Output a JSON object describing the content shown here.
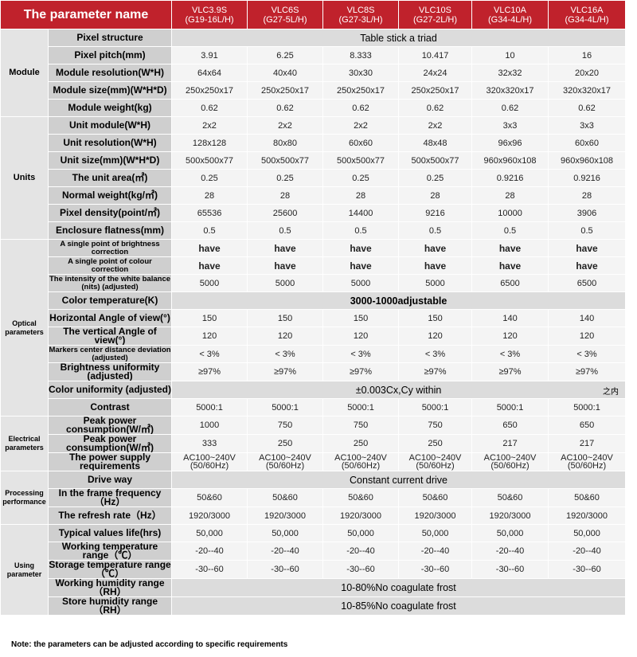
{
  "header": {
    "title": "The parameter name",
    "models": [
      {
        "name": "VLC3.9S",
        "code": "(G19-16L/H)"
      },
      {
        "name": "VLC6S",
        "code": "(G27-5L/H)"
      },
      {
        "name": "VLC8S",
        "code": "(G27-3L/H)"
      },
      {
        "name": "VLC10S",
        "code": "(G27-2L/H)"
      },
      {
        "name": "VLC10A",
        "code": "(G34-4L/H)"
      },
      {
        "name": "VLC16A",
        "code": "(G34-4L/H)"
      }
    ]
  },
  "groups": [
    {
      "name": "Module",
      "rows": [
        {
          "label": "Pixel structure",
          "span": "Table stick a triad"
        },
        {
          "label": "Pixel pitch(mm)",
          "values": [
            "3.91",
            "6.25",
            "8.333",
            "10.417",
            "10",
            "16"
          ]
        },
        {
          "label": "Module resolution(W*H)",
          "values": [
            "64x64",
            "40x40",
            "30x30",
            "24x24",
            "32x32",
            "20x20"
          ]
        },
        {
          "label": "Module size(mm)(W*H*D)",
          "values": [
            "250x250x17",
            "250x250x17",
            "250x250x17",
            "250x250x17",
            "320x320x17",
            "320x320x17"
          ]
        },
        {
          "label": "Module weight(kg)",
          "values": [
            "0.62",
            "0.62",
            "0.62",
            "0.62",
            "0.62",
            "0.62"
          ]
        }
      ]
    },
    {
      "name": "Units",
      "rows": [
        {
          "label": "Unit module(W*H)",
          "values": [
            "2x2",
            "2x2",
            "2x2",
            "2x2",
            "3x3",
            "3x3"
          ]
        },
        {
          "label": "Unit resolution(W*H)",
          "values": [
            "128x128",
            "80x80",
            "60x60",
            "48x48",
            "96x96",
            "60x60"
          ]
        },
        {
          "label": "Unit size(mm)(W*H*D)",
          "values": [
            "500x500x77",
            "500x500x77",
            "500x500x77",
            "500x500x77",
            "960x960x108",
            "960x960x108"
          ]
        },
        {
          "label": "The unit area(㎡)",
          "values": [
            "0.25",
            "0.25",
            "0.25",
            "0.25",
            "0.9216",
            "0.9216"
          ]
        },
        {
          "label": "Normal weight(kg/㎡)",
          "values": [
            "28",
            "28",
            "28",
            "28",
            "28",
            "28"
          ]
        },
        {
          "label": "Pixel density(point/㎡)",
          "values": [
            "65536",
            "25600",
            "14400",
            "9216",
            "10000",
            "3906"
          ]
        },
        {
          "label": "Enclosure flatness(mm)",
          "values": [
            "0.5",
            "0.5",
            "0.5",
            "0.5",
            "0.5",
            "0.5"
          ]
        }
      ]
    },
    {
      "name": "Optical parameters",
      "rows": [
        {
          "label": "A single point of brightness correction",
          "values": [
            "have",
            "have",
            "have",
            "have",
            "have",
            "have"
          ]
        },
        {
          "label": "A single point of colour correction",
          "values": [
            "have",
            "have",
            "have",
            "have",
            "have",
            "have"
          ]
        },
        {
          "label": "The intensity of the white balance (nits) (adjusted)",
          "values": [
            "5000",
            "5000",
            "5000",
            "5000",
            "6500",
            "6500"
          ]
        },
        {
          "label": "Color temperature(K)",
          "span": "3000-1000adjustable"
        },
        {
          "label": "Horizontal Angle of view(°)",
          "values": [
            "150",
            "150",
            "150",
            "150",
            "140",
            "140"
          ]
        },
        {
          "label": "The vertical Angle of view(°)",
          "values": [
            "120",
            "120",
            "120",
            "120",
            "120",
            "120"
          ]
        },
        {
          "label": "Markers center distance deviation (adjusted)",
          "values": [
            "< 3%",
            "< 3%",
            "< 3%",
            "< 3%",
            "< 3%",
            "< 3%"
          ]
        },
        {
          "label": "Brightness uniformity (adjusted)",
          "values": [
            "≥97%",
            "≥97%",
            "≥97%",
            "≥97%",
            "≥97%",
            "≥97%"
          ]
        },
        {
          "label": "Color uniformity (adjusted)",
          "span": "±0.003Cx,Cy  within",
          "suffix": "之内"
        },
        {
          "label": "Contrast",
          "values": [
            "5000:1",
            "5000:1",
            "5000:1",
            "5000:1",
            "5000:1",
            "5000:1"
          ]
        }
      ]
    },
    {
      "name": "Electrical parameters",
      "rows": [
        {
          "label": "Peak power consumption(W/㎡)",
          "values": [
            "1000",
            "750",
            "750",
            "750",
            "650",
            "650"
          ]
        },
        {
          "label": "Peak power consumption(W/㎡)",
          "values": [
            "333",
            "250",
            "250",
            "250",
            "217",
            "217"
          ]
        },
        {
          "label": "The power supply requirements",
          "values": [
            "AC100~240V (50/60Hz)",
            "AC100~240V (50/60Hz)",
            "AC100~240V (50/60Hz)",
            "AC100~240V (50/60Hz)",
            "AC100~240V (50/60Hz)",
            "AC100~240V (50/60Hz)"
          ]
        }
      ]
    },
    {
      "name": "Processing performance",
      "rows": [
        {
          "label": "Drive way",
          "span": "Constant current drive"
        },
        {
          "label": "In the frame frequency（Hz）",
          "values": [
            "50&60",
            "50&60",
            "50&60",
            "50&60",
            "50&60",
            "50&60"
          ]
        },
        {
          "label": "The refresh rate（Hz）",
          "values": [
            "1920/3000",
            "1920/3000",
            "1920/3000",
            "1920/3000",
            "1920/3000",
            "1920/3000"
          ]
        }
      ]
    },
    {
      "name": "Using parameter",
      "rows": [
        {
          "label": "Typical values life(hrs)",
          "values": [
            "50,000",
            "50,000",
            "50,000",
            "50,000",
            "50,000",
            "50,000"
          ]
        },
        {
          "label": "Working temperature range（℃）",
          "values": [
            "-20--40",
            "-20--40",
            "-20--40",
            "-20--40",
            "-20--40",
            "-20--40"
          ]
        },
        {
          "label": "Storage temperature range（℃）",
          "values": [
            "-30--60",
            "-30--60",
            "-30--60",
            "-30--60",
            "-30--60",
            "-30--60"
          ]
        },
        {
          "label": "Working humidity range（RH）",
          "span": "10-80%No coagulate frost"
        },
        {
          "label": "Store humidity range（RH）",
          "span": "10-85%No coagulate frost"
        }
      ]
    }
  ],
  "note": "Note: the parameters can be adjusted according to specific requirements"
}
